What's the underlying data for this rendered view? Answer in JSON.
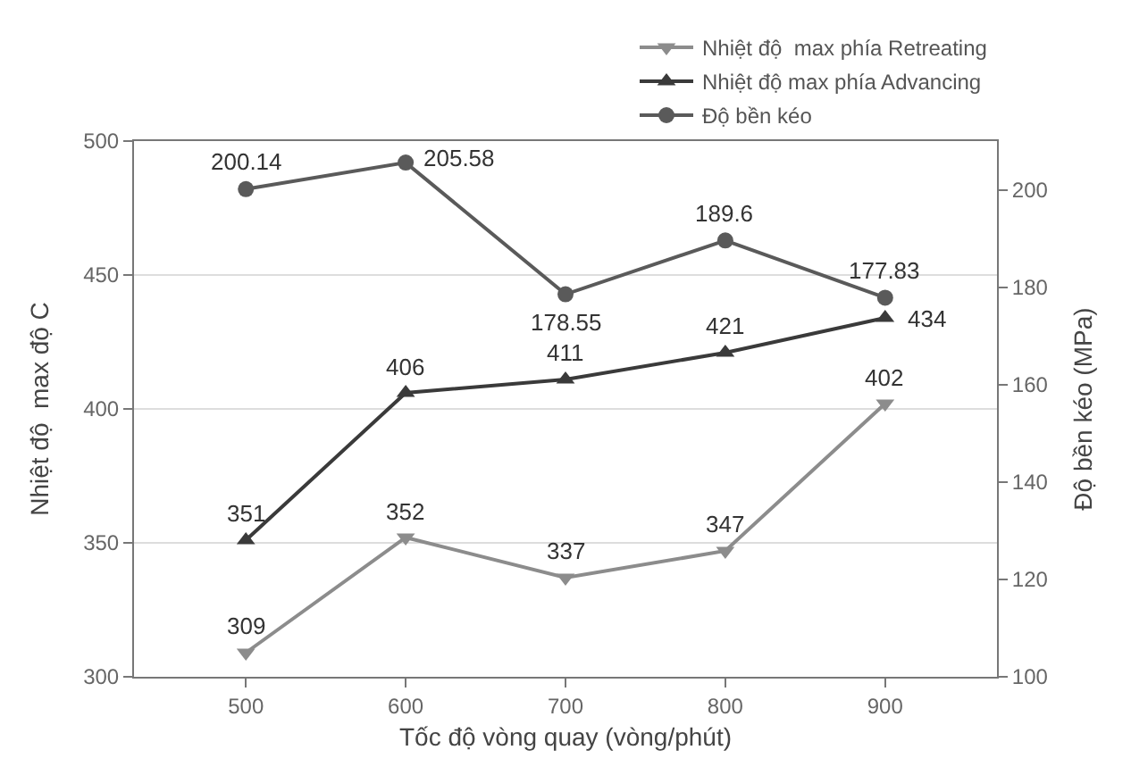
{
  "chart_data": {
    "type": "line",
    "xlabel": "Tốc độ vòng quay (vòng/phút)",
    "ylabel": "Nhiệt độ  max độ C",
    "y2label": "Độ bền kéo (MPa)",
    "x": [
      500,
      600,
      700,
      800,
      900
    ],
    "xlim": [
      430,
      970
    ],
    "xticks": [
      500,
      600,
      700,
      800,
      900
    ],
    "ylim": [
      300,
      500
    ],
    "yticks": [
      300,
      350,
      400,
      450,
      500
    ],
    "y2lim": [
      100,
      210
    ],
    "y2ticks": [
      100,
      120,
      140,
      160,
      180,
      200
    ],
    "grid": "y",
    "legend": "top right",
    "data_labels": true,
    "series": [
      {
        "name": "Nhiệt độ  max phía Retreating",
        "color": "#8c8c8c",
        "marker": "triangle-down",
        "values": [
          309,
          352,
          337,
          347,
          402
        ]
      },
      {
        "name": "Nhiệt độ max phía Advancing",
        "color": "#3a3a3a",
        "marker": "triangle",
        "values": [
          351,
          406,
          411,
          421,
          434
        ]
      },
      {
        "name": "Độ bền kéo",
        "color": "#5a5a5a",
        "marker": "circle",
        "axis": "y2",
        "values": [
          200.14,
          205.58,
          178.55,
          189.6,
          177.83
        ]
      }
    ]
  }
}
